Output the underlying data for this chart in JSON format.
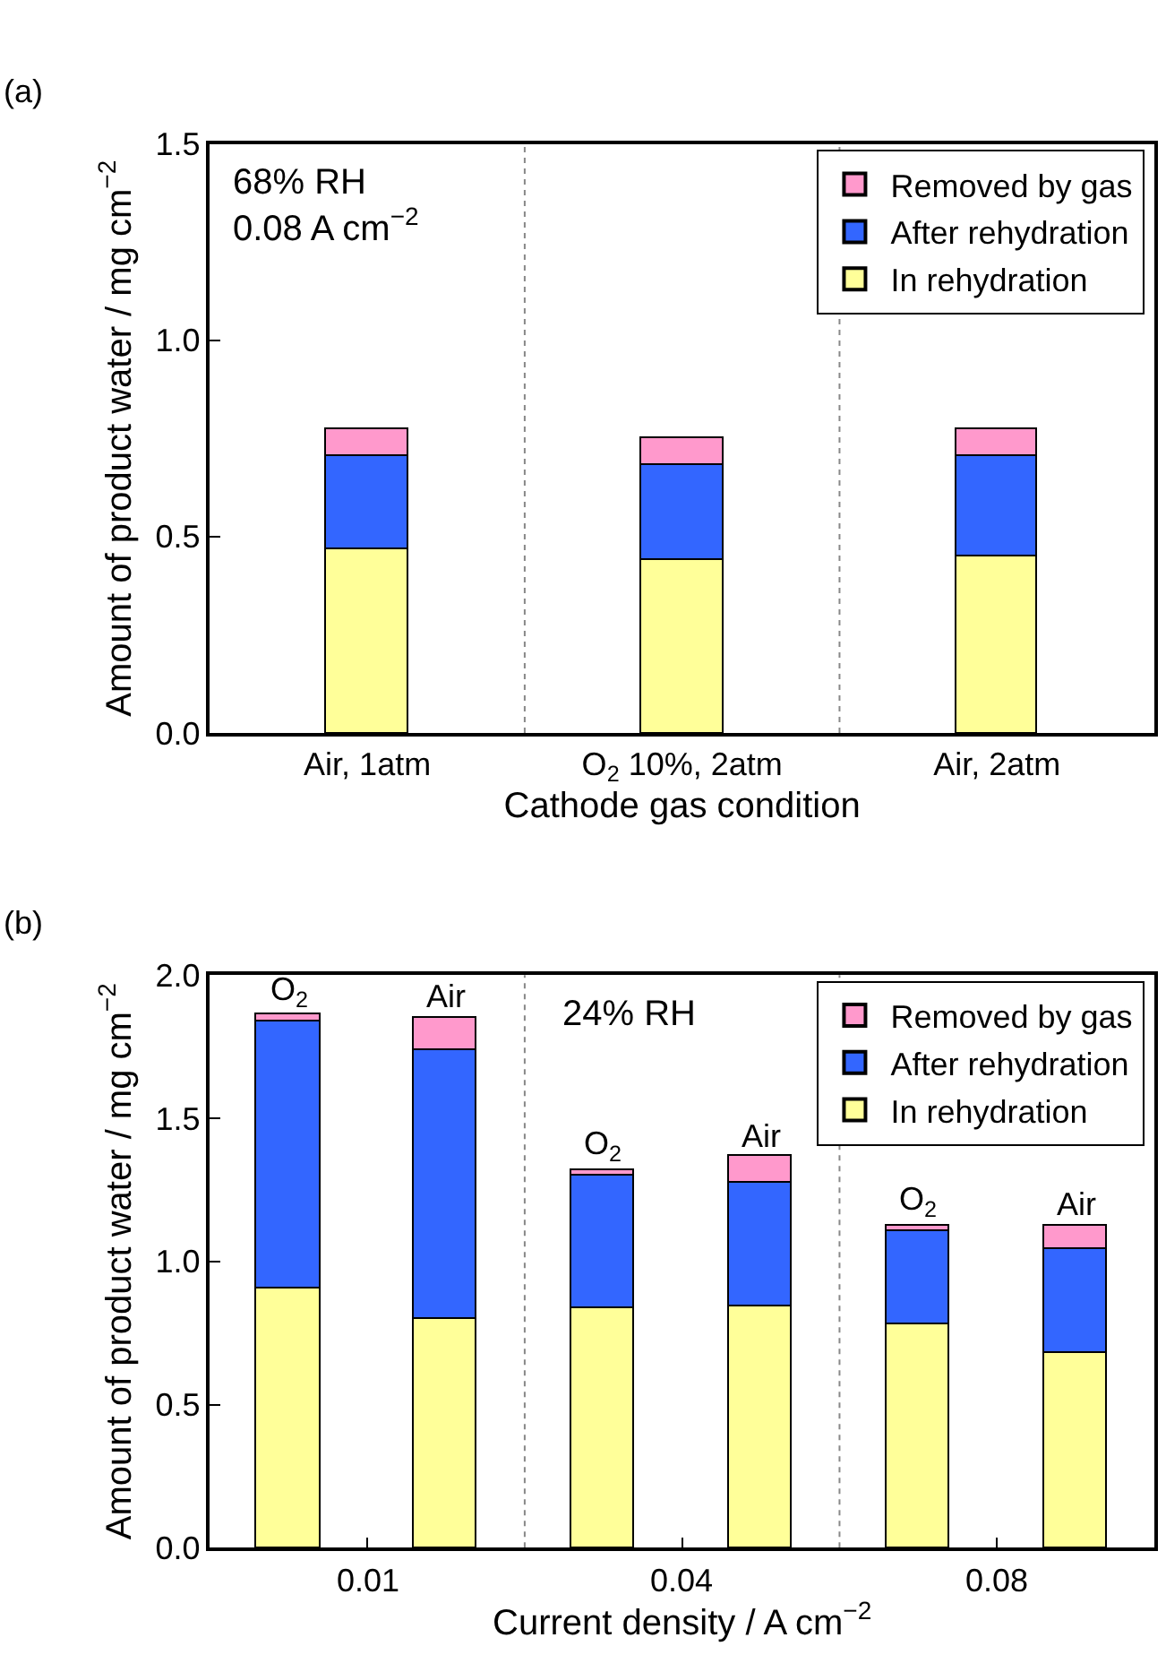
{
  "chart_data": [
    {
      "type": "bar",
      "stacked": true,
      "xlabel": "Cathode gas condition",
      "ylabel": "Amount of product water / mg cm$^{−2}$",
      "annotations": [
        "(a)",
        "68% RH\n0.08 A cm$^{−2}$"
      ],
      "categories": [
        "Air, 1atm",
        "O$_{2}$ 10%, 2atm",
        "Air, 2atm"
      ],
      "ylim": [
        0,
        1.5
      ],
      "yticks": [
        {
          "value": 0,
          "label": "0.0"
        },
        {
          "value": 0.5,
          "label": "0.5"
        },
        {
          "value": 1,
          "label": "1.0"
        },
        {
          "value": 1.5,
          "label": "1.5"
        }
      ],
      "series": [
        {
          "name": "In rehydration",
          "color": "#ffff99",
          "values": [
            0.47,
            0.44,
            0.45
          ]
        },
        {
          "name": "After rehydration",
          "color": "#3366ff",
          "values": [
            0.235,
            0.245,
            0.255
          ]
        },
        {
          "name": "Removed by gas",
          "color": "#ff99cc",
          "values": [
            0.07,
            0.065,
            0.07
          ]
        }
      ],
      "legend": "top right",
      "grid": false
    },
    {
      "type": "bar",
      "stacked": true,
      "xlabel": "Current density / A cm$^{−2}$",
      "ylabel": "Amount of product water / mg cm$^{−2}$",
      "annotations": [
        "(b)",
        "24% RH",
        "0.01",
        "0.04",
        "0.08",
        {
          "text": "O$_{2}$",
          "y": 1.855
        },
        {
          "text": "Air",
          "y": 1.85
        },
        {
          "text": "O$_{2}$",
          "y": 1.32
        },
        {
          "text": "Air",
          "y": 1.365
        },
        {
          "text": "O$_{2}$",
          "y": 1.125
        },
        {
          "text": "Air",
          "y": 1.125
        }
      ],
      "categories": [
        null,
        null,
        null,
        null,
        null,
        null
      ],
      "ylim": [
        0,
        2.0
      ],
      "yticks": [
        {
          "value": 0,
          "label": "0.0"
        },
        {
          "value": 0.5,
          "label": "0.5"
        },
        {
          "value": 1,
          "label": "1.0"
        },
        {
          "value": 1.5,
          "label": "1.5"
        },
        {
          "value": 2,
          "label": "2.0"
        }
      ],
      "series": [
        {
          "name": "In rehydration",
          "color": "#ffff99",
          "values": [
            0.905,
            0.8,
            0.835,
            0.84,
            0.78,
            0.68
          ]
        },
        {
          "name": "After rehydration",
          "color": "#3366ff",
          "values": [
            0.93,
            0.94,
            0.465,
            0.435,
            0.325,
            0.365
          ]
        },
        {
          "name": "Removed by gas",
          "color": "#ff99cc",
          "values": [
            0.025,
            0.11,
            0.02,
            0.09,
            0.02,
            0.08
          ]
        }
      ],
      "legend": "top right",
      "grid": false
    }
  ]
}
